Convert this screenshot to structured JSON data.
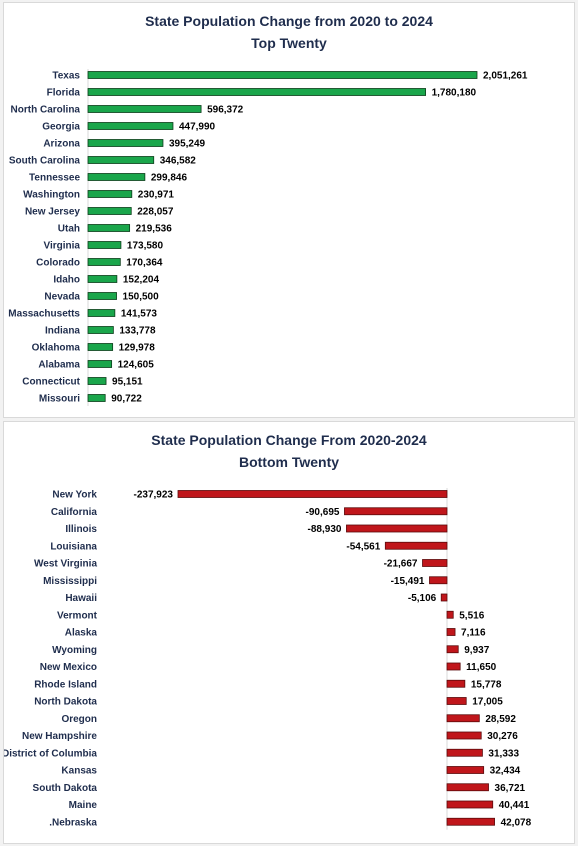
{
  "chart_data": [
    {
      "type": "bar",
      "orientation": "horizontal",
      "title": "State Population Change from 2020 to 2024",
      "subtitle": "Top Twenty",
      "bar_color": "#1aa64b",
      "bar_edge": "#0b3d1a",
      "categories": [
        "Texas",
        "Florida",
        "North Carolina",
        "Georgia",
        "Arizona",
        "South Carolina",
        "Tennessee",
        "Washington",
        "New Jersey",
        "Utah",
        "Virginia",
        "Colorado",
        "Idaho",
        "Nevada",
        "Massachusetts",
        "Indiana",
        "Oklahoma",
        "Alabama",
        "Connecticut",
        "Missouri"
      ],
      "values": [
        2051261,
        1780180,
        596372,
        447990,
        395249,
        346582,
        299846,
        230971,
        228057,
        219536,
        173580,
        170364,
        152204,
        150500,
        141573,
        133778,
        129978,
        124605,
        95151,
        90722
      ],
      "labels": [
        "2,051,261",
        "1,780,180",
        "596,372",
        "447,990",
        "395,249",
        "346,582",
        "299,846",
        "230,971",
        "228,057",
        "219,536",
        "173,580",
        "170,364",
        "152,204",
        "150,500",
        "141,573",
        "133,778",
        "129,978",
        "124,605",
        "95,151",
        "90,722"
      ]
    },
    {
      "type": "bar",
      "orientation": "horizontal",
      "title": "State Population Change From 2020-2024",
      "subtitle": "Bottom Twenty",
      "bar_color": "#c0161b",
      "bar_edge": "#5a0a0c",
      "categories": [
        "New York",
        "California",
        "Illinois",
        "Louisiana",
        "West Virginia",
        "Mississippi",
        "Hawaii",
        "Vermont",
        "Alaska",
        "Wyoming",
        "New Mexico",
        "Rhode Island",
        "North Dakota",
        "Oregon",
        "New Hampshire",
        "District of Columbia",
        "Kansas",
        "South Dakota",
        "Maine",
        ".Nebraska"
      ],
      "values": [
        -237923,
        -90695,
        -88930,
        -54561,
        -21667,
        -15491,
        -5106,
        5516,
        7116,
        9937,
        11650,
        15778,
        17005,
        28592,
        30276,
        31333,
        32434,
        36721,
        40441,
        42078
      ],
      "labels": [
        "-237,923",
        "-90,695",
        "-88,930",
        "-54,561",
        "-21,667",
        "-15,491",
        "-5,106",
        "5,516",
        "7,116",
        "9,937",
        "11,650",
        "15,778",
        "17,005",
        "28,592",
        "30,276",
        "31,333",
        "32,434",
        "36,721",
        "40,441",
        "42,078"
      ]
    }
  ]
}
